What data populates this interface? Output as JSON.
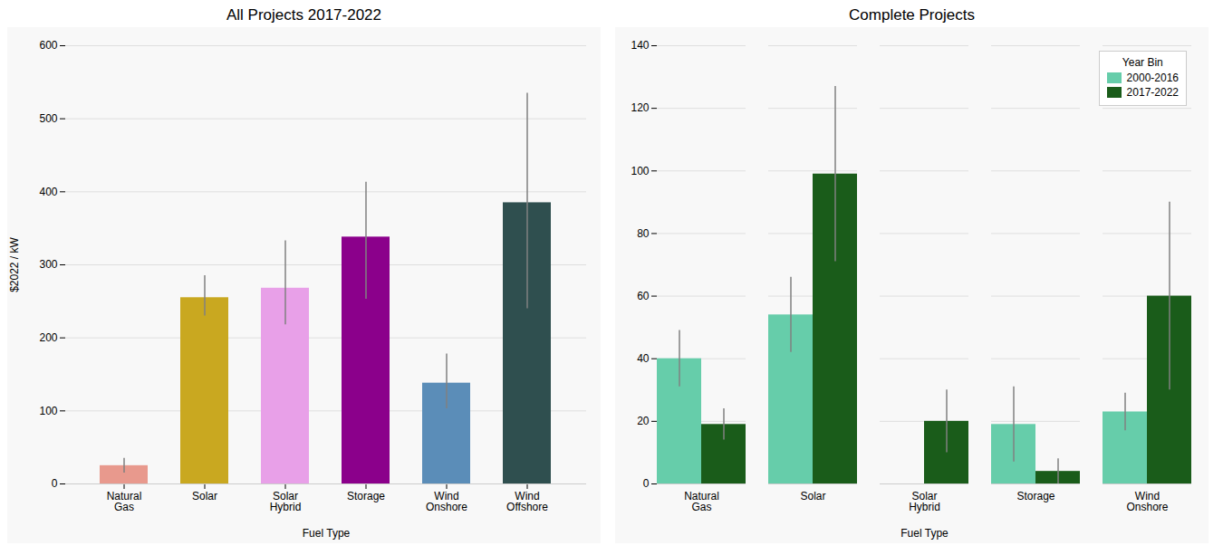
{
  "chart_data": [
    {
      "type": "bar",
      "title": "All Projects 2017-2022",
      "xlabel": "Fuel Type",
      "ylabel": "$2022 / kW",
      "categories": [
        "Natural\nGas",
        "Solar",
        "Solar\nHybrid",
        "Storage",
        "Wind\nOnshore",
        "Wind\nOffshore"
      ],
      "values": [
        25,
        255,
        268,
        338,
        138,
        385
      ],
      "errors_upper": [
        10,
        30,
        65,
        75,
        40,
        150
      ],
      "errors_lower": [
        10,
        25,
        50,
        85,
        35,
        145
      ],
      "colors": [
        "#e8998d",
        "#c9a820",
        "#e8a0e8",
        "#8b008b",
        "#5b8db8",
        "#2f4f4f"
      ],
      "ylim": [
        0,
        600
      ],
      "yticks": [
        0,
        100,
        200,
        300,
        400,
        500,
        600
      ],
      "grid": true
    },
    {
      "type": "bar",
      "title": "Complete Projects",
      "xlabel": "Fuel Type",
      "categories": [
        "Natural\nGas",
        "Solar",
        "Solar\nHybrid",
        "Storage",
        "Wind\nOnshore"
      ],
      "series": [
        {
          "name": "2000-2016",
          "color": "#66cdaa",
          "values": [
            40,
            54,
            0,
            19,
            23
          ],
          "errors_upper": [
            9,
            12,
            0,
            12,
            6
          ],
          "errors_lower": [
            9,
            12,
            0,
            12,
            6
          ]
        },
        {
          "name": "2017-2022",
          "color": "#1a5c1a",
          "values": [
            19,
            99,
            20,
            4,
            60
          ],
          "errors_upper": [
            5,
            28,
            10,
            4,
            30
          ],
          "errors_lower": [
            5,
            28,
            10,
            4,
            30
          ]
        }
      ],
      "legend_title": "Year Bin",
      "legend": "upper right",
      "ylim": [
        0,
        140
      ],
      "yticks": [
        0,
        20,
        40,
        60,
        80,
        100,
        120,
        140
      ],
      "grid": true
    }
  ]
}
